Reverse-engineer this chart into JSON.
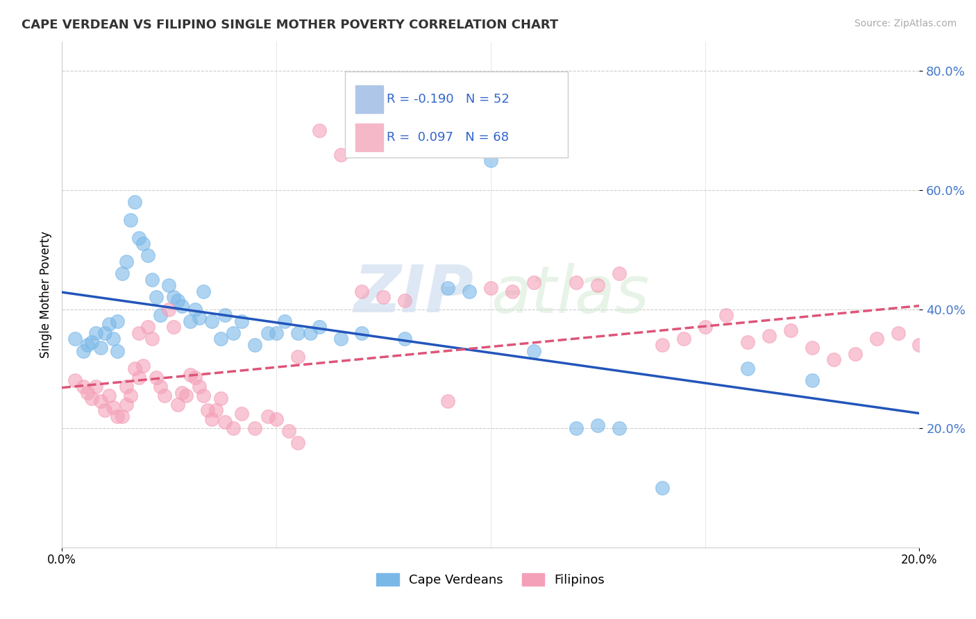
{
  "title": "CAPE VERDEAN VS FILIPINO SINGLE MOTHER POVERTY CORRELATION CHART",
  "source": "Source: ZipAtlas.com",
  "ylabel": "Single Mother Poverty",
  "xlim": [
    0.0,
    20.0
  ],
  "ylim": [
    0.0,
    85.0
  ],
  "yticks": [
    20.0,
    40.0,
    60.0,
    80.0
  ],
  "ytick_labels": [
    "20.0%",
    "40.0%",
    "60.0%",
    "80.0%"
  ],
  "xtick_labels": [
    "0.0%",
    "20.0%"
  ],
  "legend_labels": [
    "Cape Verdeans",
    "Filipinos"
  ],
  "cape_verdean_color": "#7ab8e8",
  "filipino_color": "#f4a0b8",
  "trend_cv_color": "#2255bb",
  "trend_fil_color": "#dd5577",
  "watermark_zip": "ZIP",
  "watermark_atlas": "atlas",
  "cape_verdean_points": [
    [
      0.3,
      35.0
    ],
    [
      0.5,
      33.0
    ],
    [
      0.6,
      34.0
    ],
    [
      0.7,
      34.5
    ],
    [
      0.8,
      36.0
    ],
    [
      0.9,
      33.5
    ],
    [
      1.0,
      36.0
    ],
    [
      1.1,
      37.5
    ],
    [
      1.2,
      35.0
    ],
    [
      1.3,
      38.0
    ],
    [
      1.3,
      33.0
    ],
    [
      1.4,
      46.0
    ],
    [
      1.5,
      48.0
    ],
    [
      1.6,
      55.0
    ],
    [
      1.7,
      58.0
    ],
    [
      1.8,
      52.0
    ],
    [
      1.9,
      51.0
    ],
    [
      2.0,
      49.0
    ],
    [
      2.1,
      45.0
    ],
    [
      2.2,
      42.0
    ],
    [
      2.3,
      39.0
    ],
    [
      2.5,
      44.0
    ],
    [
      2.6,
      42.0
    ],
    [
      2.7,
      41.5
    ],
    [
      2.8,
      40.5
    ],
    [
      3.0,
      38.0
    ],
    [
      3.1,
      40.0
    ],
    [
      3.2,
      38.5
    ],
    [
      3.3,
      43.0
    ],
    [
      3.5,
      38.0
    ],
    [
      3.7,
      35.0
    ],
    [
      3.8,
      39.0
    ],
    [
      4.0,
      36.0
    ],
    [
      4.2,
      38.0
    ],
    [
      4.5,
      34.0
    ],
    [
      4.8,
      36.0
    ],
    [
      5.0,
      36.0
    ],
    [
      5.2,
      38.0
    ],
    [
      5.5,
      36.0
    ],
    [
      5.8,
      36.0
    ],
    [
      6.0,
      37.0
    ],
    [
      6.5,
      35.0
    ],
    [
      7.0,
      36.0
    ],
    [
      8.0,
      35.0
    ],
    [
      9.0,
      43.5
    ],
    [
      9.5,
      43.0
    ],
    [
      10.0,
      65.0
    ],
    [
      11.0,
      33.0
    ],
    [
      12.0,
      20.0
    ],
    [
      12.5,
      20.5
    ],
    [
      13.0,
      20.0
    ],
    [
      14.0,
      10.0
    ],
    [
      16.0,
      30.0
    ],
    [
      17.5,
      28.0
    ]
  ],
  "filipino_points": [
    [
      0.3,
      28.0
    ],
    [
      0.5,
      27.0
    ],
    [
      0.6,
      26.0
    ],
    [
      0.7,
      25.0
    ],
    [
      0.8,
      27.0
    ],
    [
      0.9,
      24.5
    ],
    [
      1.0,
      23.0
    ],
    [
      1.1,
      25.5
    ],
    [
      1.2,
      23.5
    ],
    [
      1.3,
      22.0
    ],
    [
      1.4,
      22.0
    ],
    [
      1.5,
      24.0
    ],
    [
      1.5,
      27.0
    ],
    [
      1.6,
      25.5
    ],
    [
      1.7,
      30.0
    ],
    [
      1.8,
      28.5
    ],
    [
      1.8,
      36.0
    ],
    [
      1.9,
      30.5
    ],
    [
      2.0,
      37.0
    ],
    [
      2.1,
      35.0
    ],
    [
      2.2,
      28.5
    ],
    [
      2.3,
      27.0
    ],
    [
      2.4,
      25.5
    ],
    [
      2.5,
      40.0
    ],
    [
      2.6,
      37.0
    ],
    [
      2.7,
      24.0
    ],
    [
      2.8,
      26.0
    ],
    [
      2.9,
      25.5
    ],
    [
      3.0,
      29.0
    ],
    [
      3.1,
      28.5
    ],
    [
      3.2,
      27.0
    ],
    [
      3.3,
      25.5
    ],
    [
      3.4,
      23.0
    ],
    [
      3.5,
      21.5
    ],
    [
      3.6,
      23.0
    ],
    [
      3.7,
      25.0
    ],
    [
      3.8,
      21.0
    ],
    [
      4.0,
      20.0
    ],
    [
      4.2,
      22.5
    ],
    [
      4.5,
      20.0
    ],
    [
      4.8,
      22.0
    ],
    [
      5.0,
      21.5
    ],
    [
      5.3,
      19.5
    ],
    [
      5.5,
      17.5
    ],
    [
      5.5,
      32.0
    ],
    [
      6.0,
      70.0
    ],
    [
      6.5,
      66.0
    ],
    [
      7.0,
      43.0
    ],
    [
      7.5,
      42.0
    ],
    [
      8.0,
      41.5
    ],
    [
      9.0,
      24.5
    ],
    [
      10.0,
      43.5
    ],
    [
      10.5,
      43.0
    ],
    [
      11.0,
      44.5
    ],
    [
      12.0,
      44.5
    ],
    [
      12.5,
      44.0
    ],
    [
      13.0,
      46.0
    ],
    [
      14.0,
      34.0
    ],
    [
      14.5,
      35.0
    ],
    [
      15.0,
      37.0
    ],
    [
      15.5,
      39.0
    ],
    [
      16.0,
      34.5
    ],
    [
      16.5,
      35.5
    ],
    [
      17.0,
      36.5
    ],
    [
      17.5,
      33.5
    ],
    [
      18.0,
      31.5
    ],
    [
      18.5,
      32.5
    ],
    [
      19.0,
      35.0
    ],
    [
      19.5,
      36.0
    ],
    [
      20.0,
      34.0
    ]
  ]
}
